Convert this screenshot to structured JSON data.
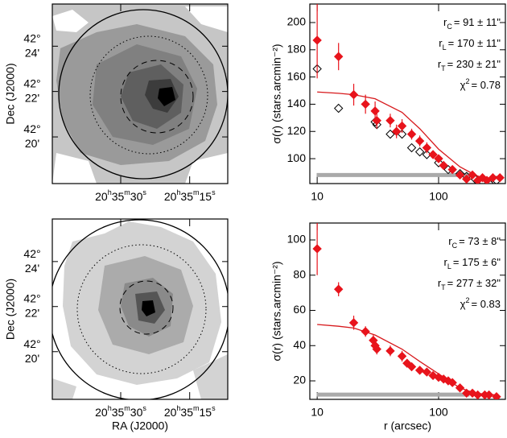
{
  "chart_data": [
    {
      "type": "map",
      "ylabel": "Dec (J2000)",
      "xlim": [
        308.937,
        308.778
      ],
      "ylim": [
        42.299,
        42.431
      ],
      "xticks": [
        {
          "value": 308.875,
          "label": "20h35m30s"
        },
        {
          "value": 308.8125,
          "label": "20h35m15s"
        }
      ],
      "yticks": [
        {
          "value": 42.4,
          "label": "42° 24'"
        },
        {
          "value": 42.3667,
          "label": "42° 22'"
        },
        {
          "value": 42.3333,
          "label": "42° 20'"
        }
      ]
    },
    {
      "type": "map",
      "ylabel": "Dec (J2000)",
      "xlabel": "RA (J2000)",
      "xlim": [
        308.937,
        308.778
      ],
      "ylim": [
        42.298,
        42.4315
      ],
      "xticks": [
        {
          "value": 308.875,
          "label": "20h35m30s"
        },
        {
          "value": 308.8125,
          "label": "20h35m15s"
        }
      ],
      "yticks": [
        {
          "value": 42.4,
          "label": "42° 24'"
        },
        {
          "value": 42.3667,
          "label": "42° 22'"
        },
        {
          "value": 42.3333,
          "label": "42° 20'"
        }
      ]
    },
    {
      "type": "profile",
      "ylabel": "σ(r) (stars.arcmin⁻²)",
      "xscale": "log",
      "xlim": [
        8.7,
        355
      ],
      "ylim": [
        81.7,
        213.6
      ],
      "xticks": [
        10,
        100
      ],
      "yticks": [
        100,
        120,
        140,
        160,
        180,
        200
      ],
      "background": {
        "value": 88,
        "x": [
          9.9,
          195
        ],
        "color": "#aaaaaa"
      },
      "series": [
        {
          "marker": "line",
          "color": "#d7191c",
          "x": [
            10,
            15,
            20,
            30,
            50,
            70,
            100,
            150,
            200,
            230
          ],
          "values": [
            149,
            148,
            147,
            144,
            134,
            122,
            107,
            94,
            88,
            86
          ]
        },
        {
          "marker": "diamond-open",
          "color": "#000000",
          "x": [
            10,
            15,
            30,
            31,
            40,
            50,
            60,
            70,
            80,
            100,
            120,
            150,
            170,
            200,
            230,
            260,
            300
          ],
          "values": [
            166,
            137,
            127,
            125,
            118,
            118,
            108,
            105,
            103,
            97,
            92,
            89,
            87,
            85,
            83,
            82,
            84
          ]
        },
        {
          "marker": "diamond",
          "color": "#e8141c",
          "x": [
            10,
            15,
            20,
            25,
            30,
            31,
            40,
            45,
            50,
            60,
            70,
            80,
            90,
            100,
            110,
            130,
            150,
            170,
            190,
            210,
            230,
            250,
            280,
            320
          ],
          "values": [
            187,
            175,
            147,
            140,
            135,
            128,
            128,
            120,
            124,
            118,
            113,
            108,
            103,
            100,
            95,
            92,
            88,
            85,
            88,
            84,
            86,
            84,
            86,
            86
          ],
          "errors": [
            28,
            10,
            8,
            7,
            7,
            6,
            5,
            5,
            5,
            4,
            4,
            4,
            3,
            3,
            3,
            3,
            3,
            2,
            2,
            2,
            2,
            2,
            2,
            2
          ]
        }
      ],
      "annotations": [
        {
          "base": "r",
          "sub": "C",
          "text": "= 91 ± 11\""
        },
        {
          "base": "r",
          "sub": "L",
          "text": "= 170 ± 11\""
        },
        {
          "base": "r",
          "sub": "T",
          "text": "= 230 ± 21\""
        },
        {
          "base": "χ",
          "sup": "2",
          "text": "= 0.78"
        }
      ]
    },
    {
      "type": "profile",
      "ylabel": "σ(r) (stars.arcmin⁻²)",
      "xlabel": "r (arcsec)",
      "xscale": "log",
      "xlim": [
        8.7,
        355
      ],
      "ylim": [
        9.5,
        109.6
      ],
      "xticks": [
        10,
        100
      ],
      "yticks": [
        20,
        40,
        60,
        80,
        100
      ],
      "background": {
        "value": 12.2,
        "x": [
          9.9,
          180
        ],
        "color": "#aaaaaa"
      },
      "series": [
        {
          "marker": "line",
          "color": "#d7191c",
          "x": [
            10,
            15,
            20,
            30,
            50,
            70,
            100,
            150,
            200,
            300
          ],
          "values": [
            52,
            51,
            50,
            46,
            38,
            31,
            24,
            16,
            13,
            12
          ]
        },
        {
          "marker": "diamond",
          "color": "#e8141c",
          "x": [
            10,
            15,
            20,
            25,
            29,
            30,
            31,
            40,
            50,
            55,
            60,
            70,
            80,
            90,
            100,
            110,
            120,
            130,
            150,
            170,
            190,
            210,
            240,
            260,
            300
          ],
          "values": [
            95,
            72,
            53,
            48,
            43,
            40,
            38,
            37,
            34,
            30,
            28,
            26,
            25,
            23,
            22,
            21,
            20,
            19,
            16,
            13,
            13,
            12,
            12,
            12,
            11
          ],
          "errors": [
            15,
            4,
            4,
            3,
            3,
            3,
            3,
            3,
            3,
            2,
            2,
            2,
            2,
            1,
            1,
            1,
            1,
            1,
            1,
            1,
            1,
            1,
            1,
            1,
            1
          ]
        }
      ],
      "annotations": [
        {
          "base": "r",
          "sub": "C",
          "text": "= 73 ± 8\""
        },
        {
          "base": "r",
          "sub": "L",
          "text": "= 175 ± 6\""
        },
        {
          "base": "r",
          "sub": "T",
          "text": "= 277 ± 32\""
        },
        {
          "base": "χ",
          "sup": "2",
          "text": "= 0.83"
        }
      ]
    }
  ]
}
